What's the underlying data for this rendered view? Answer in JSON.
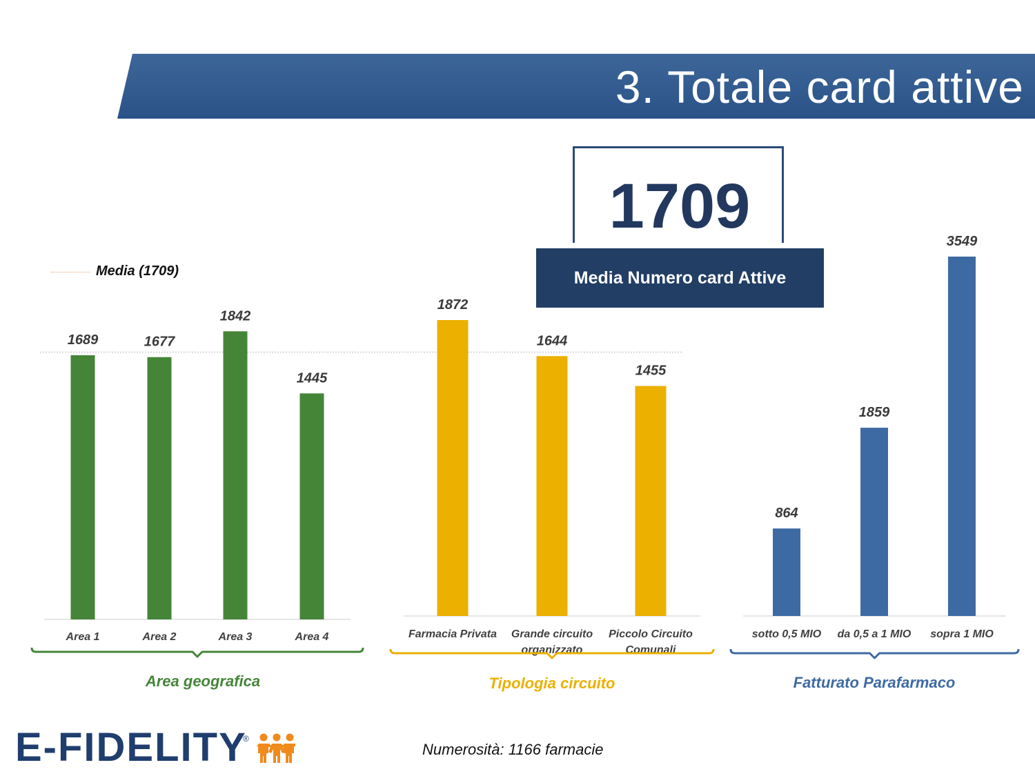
{
  "slide": {
    "title": "3. Totale card attive",
    "kpi": {
      "value": "1709",
      "label": "Media Numero card Attive"
    },
    "legend": {
      "label": "Media (1709)"
    },
    "footnote": "Numerosità: 1166 farmacie",
    "logo": {
      "text": "E-FIDELITY",
      "mark": "®"
    },
    "colors": {
      "banner": "#2f5a8e",
      "kpi_dark": "#223e64",
      "green": "#458538",
      "yellow": "#ebb000",
      "blue": "#3e6aa3",
      "logo_orange": "#f08a1c"
    }
  },
  "chart_data": [
    {
      "type": "bar",
      "title": "Area geografica",
      "categories": [
        "Area 1",
        "Area 2",
        "Area 3",
        "Area 4"
      ],
      "values": [
        1689,
        1677,
        1842,
        1445
      ],
      "color": "#458538",
      "reference_line": {
        "label": "Media (1709)",
        "value": 1709
      }
    },
    {
      "type": "bar",
      "title": "Tipologia circuito",
      "categories": [
        "Farmacia Privata",
        "Grande circuito organizzato",
        "Piccolo Circuito Comunali"
      ],
      "values": [
        1872,
        1644,
        1455
      ],
      "color": "#ebb000",
      "reference_line": {
        "label": "Media (1709)",
        "value": 1709
      }
    },
    {
      "type": "bar",
      "title": "Fatturato Parafarmaco",
      "categories": [
        "sotto 0,5 MIO",
        "da 0,5 a 1 MIO",
        "sopra 1 MIO"
      ],
      "values": [
        864,
        1859,
        3549
      ],
      "color": "#3e6aa3"
    }
  ]
}
